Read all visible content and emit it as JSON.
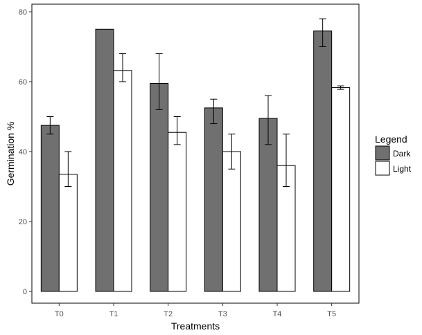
{
  "chart_data": {
    "type": "bar",
    "xlabel": "Treatments",
    "ylabel": "Germination %",
    "ylim": [
      0,
      80
    ],
    "yticks": [
      0,
      20,
      40,
      60,
      80
    ],
    "categories": [
      "T0",
      "T1",
      "T2",
      "T3",
      "T4",
      "T5"
    ],
    "series": [
      {
        "name": "Dark",
        "color": "#707070",
        "values": [
          47.5,
          75,
          59.5,
          52.5,
          49.5,
          74.5
        ],
        "error_low": [
          45,
          null,
          52,
          48,
          42,
          70
        ],
        "error_high": [
          50,
          null,
          68,
          55,
          56,
          78
        ]
      },
      {
        "name": "Light",
        "color": "#ffffff",
        "values": [
          33.5,
          63.2,
          45.5,
          40,
          36,
          58.3
        ],
        "error_low": [
          30,
          60,
          42,
          35,
          30,
          57.8
        ],
        "error_high": [
          40,
          68,
          50,
          45,
          45,
          58.8
        ]
      }
    ],
    "legend": {
      "title": "Legend",
      "position": "right"
    },
    "grid": false
  }
}
